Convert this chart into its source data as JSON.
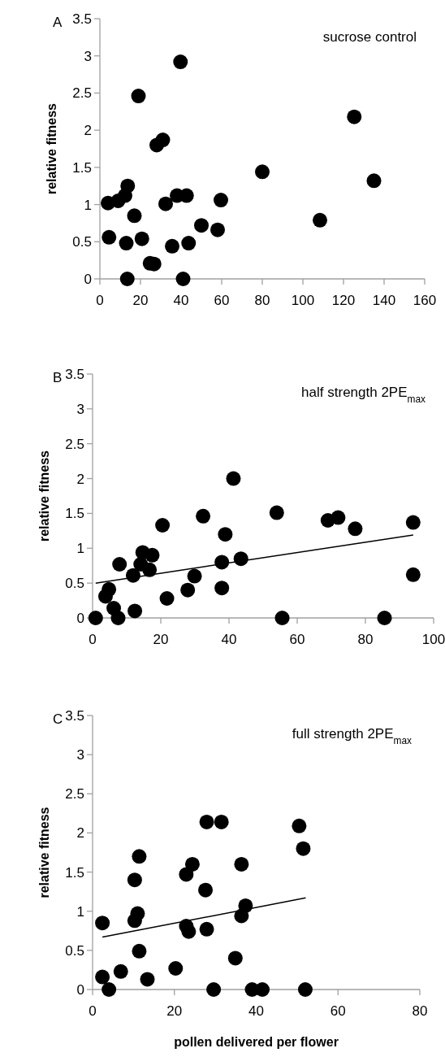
{
  "chart_data": [
    {
      "type": "scatter",
      "title": "sucrose control",
      "annotations": [
        "A"
      ],
      "ylabel": "relative fitness",
      "xlim": [
        0,
        160
      ],
      "xticks": [
        0,
        20,
        40,
        60,
        80,
        100,
        120,
        140,
        160
      ],
      "ylim": [
        0,
        3.5
      ],
      "yticks": [
        0,
        0.5,
        1,
        1.5,
        2,
        2.5,
        3,
        3.5
      ],
      "grid": false,
      "marker": "circle",
      "series": [
        {
          "color": "#000000",
          "x": [
            4,
            9,
            12.4,
            13.7,
            4.5,
            13,
            13.5,
            17,
            19,
            20.7,
            24.7,
            26.7,
            28,
            31,
            32.4,
            35.6,
            38,
            39.7,
            41,
            42.7,
            43.7,
            50,
            58,
            59.6,
            80,
            108.4,
            125.3,
            135
          ],
          "values": [
            1.02,
            1.05,
            1.12,
            1.25,
            0.56,
            0.48,
            0,
            0.85,
            2.46,
            0.54,
            0.21,
            0.2,
            1.8,
            1.87,
            1.01,
            0.44,
            1.12,
            2.92,
            0,
            1.12,
            0.48,
            0.72,
            0.66,
            1.06,
            1.44,
            0.79,
            2.18,
            1.32
          ]
        }
      ]
    },
    {
      "type": "scatter",
      "title": "half strength 2PE$_{max}$",
      "annotations": [
        "B"
      ],
      "ylabel": "relative fitness",
      "xlim": [
        0,
        100
      ],
      "xticks": [
        0,
        20,
        40,
        60,
        80,
        100
      ],
      "ylim": [
        0,
        3.5
      ],
      "yticks": [
        0,
        0.5,
        1,
        1.5,
        2,
        2.5,
        3,
        3.5
      ],
      "grid": false,
      "marker": "circle",
      "series": [
        {
          "color": "#000000",
          "x": [
            0.9,
            7.5,
            3.8,
            4.8,
            6.2,
            7.9,
            11.9,
            12.4,
            14.7,
            14.1,
            17.5,
            16.7,
            20.5,
            21.8,
            27.9,
            29.9,
            32.4,
            37.9,
            37.9,
            38.9,
            41.3,
            43.5,
            54,
            55.6,
            69,
            72,
            77,
            85.6,
            94,
            94
          ],
          "values": [
            0,
            0,
            0.31,
            0.41,
            0.14,
            0.77,
            0.61,
            0.1,
            0.94,
            0.77,
            0.9,
            0.69,
            1.33,
            0.28,
            0.4,
            0.6,
            1.46,
            0.8,
            0.43,
            1.2,
            2,
            0.85,
            1.51,
            0,
            1.4,
            1.44,
            1.28,
            0,
            1.37,
            0.62
          ]
        },
        {
          "type": "line",
          "color": "#000000",
          "marker": "none",
          "x": [
            0.9,
            94
          ],
          "values": [
            0.5,
            1.19
          ]
        }
      ]
    },
    {
      "type": "scatter",
      "title": "full strength 2PE$_{max}$",
      "annotations": [
        "C"
      ],
      "xlabel": "pollen delivered per flower",
      "ylabel": "relative fitness",
      "xlim": [
        0,
        80
      ],
      "xticks": [
        0,
        20,
        40,
        60,
        80
      ],
      "ylim": [
        0,
        3.5
      ],
      "yticks": [
        0,
        0.5,
        1,
        1.5,
        2,
        2.5,
        3,
        3.5
      ],
      "grid": false,
      "marker": "circle",
      "series": [
        {
          "color": "#000000",
          "x": [
            2.4,
            2.4,
            4,
            6.9,
            10.3,
            11.4,
            11,
            10.3,
            11.4,
            13.4,
            20.3,
            22.9,
            24.4,
            22.9,
            23.5,
            27.6,
            27.9,
            27.9,
            29.6,
            31.5,
            34.9,
            36.4,
            37.4,
            36.4,
            39,
            41.5,
            50.5,
            51.5,
            52
          ],
          "values": [
            0.85,
            0.16,
            0,
            0.23,
            1.4,
            1.7,
            0.97,
            0.88,
            0.49,
            0.13,
            0.27,
            1.47,
            1.6,
            0.81,
            0.74,
            1.27,
            2.14,
            0.77,
            0,
            2.14,
            0.4,
            1.6,
            1.07,
            0.94,
            0,
            0,
            2.09,
            1.8,
            0
          ]
        },
        {
          "type": "line",
          "color": "#000000",
          "marker": "none",
          "x": [
            2.4,
            52.1
          ],
          "values": [
            0.67,
            1.17
          ]
        }
      ]
    }
  ]
}
